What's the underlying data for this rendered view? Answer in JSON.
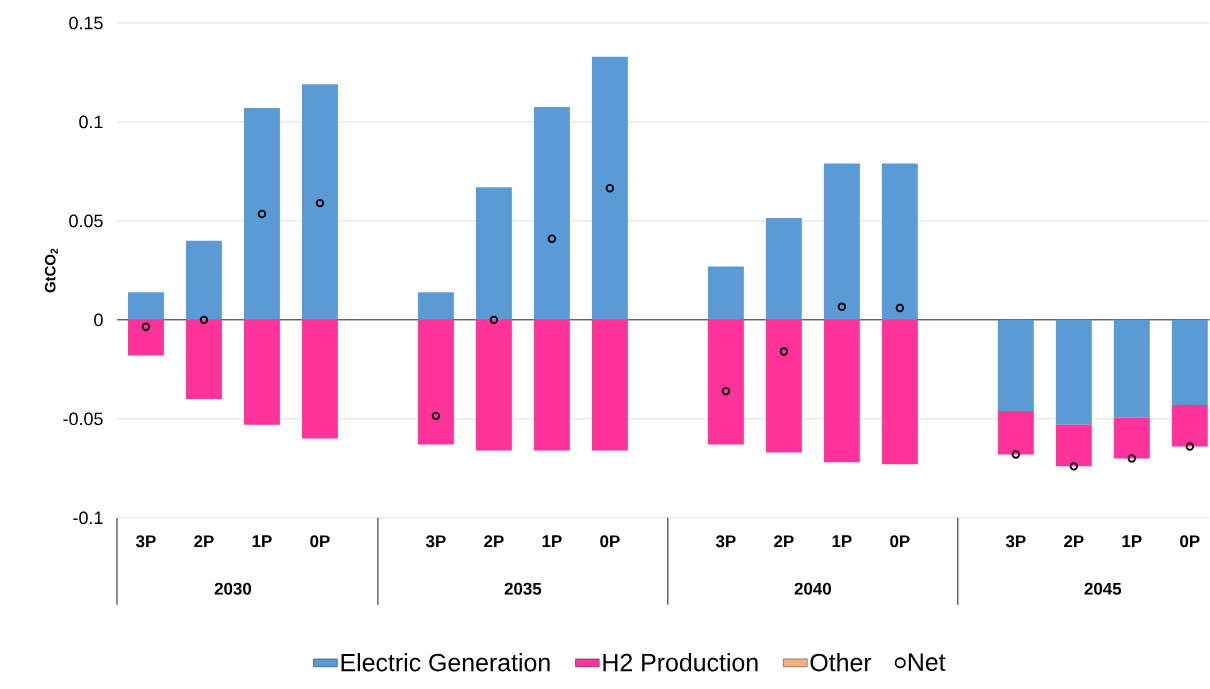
{
  "chart_data": {
    "type": "bar",
    "stacked": true,
    "ylabel": "GtCO$_{2}$",
    "categories": [
      "3P",
      "2P",
      "1P",
      "0P",
      null,
      "3P",
      "2P",
      "1P",
      "0P",
      null,
      "3P",
      "2P",
      "1P",
      "0P",
      null,
      "3P",
      "2P",
      "1P",
      "0P"
    ],
    "annotations": [
      "2030",
      "2035",
      "2040",
      "2045"
    ],
    "series": [
      {
        "name": "Electric Generation",
        "color": "#5b9bd5",
        "values": [
          0.014,
          0.04,
          0.107,
          0.119,
          null,
          0.014,
          0.067,
          0.1075,
          0.133,
          null,
          0.027,
          0.0515,
          0.079,
          0.079,
          null,
          -0.046,
          -0.053,
          -0.0495,
          -0.043
        ]
      },
      {
        "name": "H2 Production",
        "color": "#ff3399",
        "values": [
          -0.018,
          -0.04,
          -0.053,
          -0.06,
          null,
          -0.063,
          -0.066,
          -0.066,
          -0.066,
          null,
          -0.063,
          -0.067,
          -0.072,
          -0.073,
          null,
          -0.022,
          -0.021,
          -0.0205,
          -0.021
        ]
      },
      {
        "name": "Other",
        "color": "#f4b183",
        "values": [
          0,
          0,
          0,
          0,
          null,
          0,
          0,
          0,
          0,
          null,
          0,
          0,
          0,
          0,
          null,
          0,
          0,
          0,
          0
        ]
      },
      {
        "name": "Net",
        "type": "scatter",
        "marker": "circle",
        "color": "#000000",
        "values": [
          -0.0035,
          0,
          0.0535,
          0.059,
          null,
          -0.0485,
          0,
          0.041,
          0.0665,
          null,
          -0.036,
          -0.016,
          0.0066,
          0.006,
          null,
          -0.068,
          -0.074,
          -0.07,
          -0.064
        ]
      }
    ],
    "ylim": [
      -0.1,
      0.15
    ],
    "yticks": [
      {
        "value": -0.1,
        "label": "-0.1"
      },
      {
        "value": -0.05,
        "label": "-0.05"
      },
      {
        "value": 0,
        "label": "0"
      },
      {
        "value": 0.05,
        "label": "0.05"
      },
      {
        "value": 0.1,
        "label": "0.1"
      },
      {
        "value": 0.15,
        "label": "0.15"
      }
    ],
    "grid": "y",
    "legend": "bottom"
  }
}
